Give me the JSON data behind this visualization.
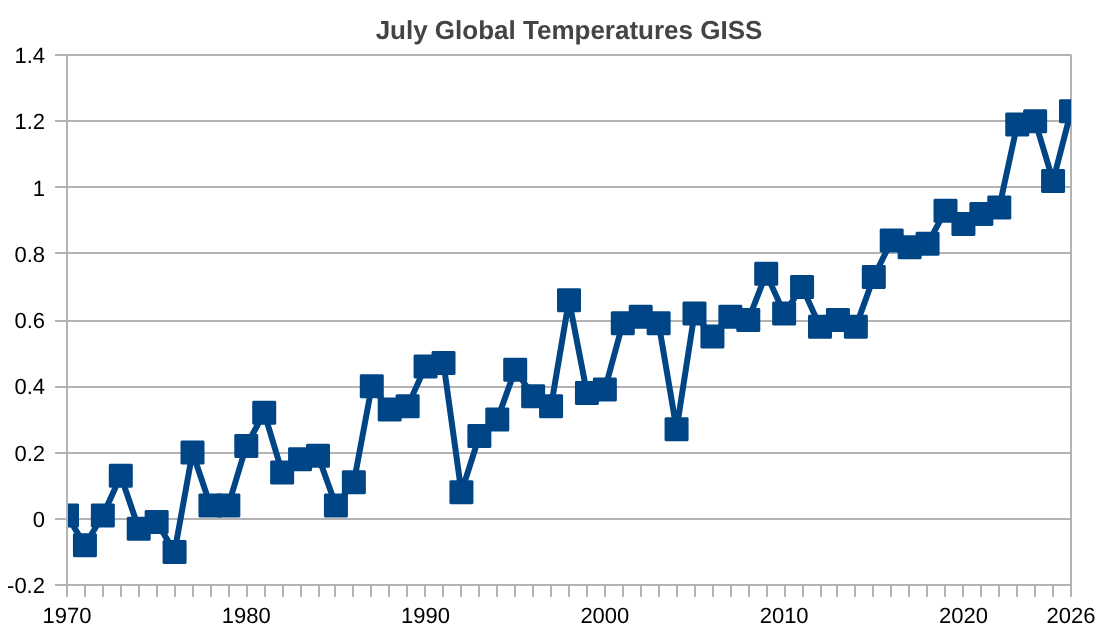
{
  "chart_data": {
    "type": "line",
    "title": "July Global Temperatures GISS",
    "x": [
      1970,
      1971,
      1972,
      1973,
      1974,
      1975,
      1976,
      1977,
      1978,
      1979,
      1980,
      1981,
      1982,
      1983,
      1984,
      1985,
      1986,
      1987,
      1988,
      1989,
      1990,
      1991,
      1992,
      1993,
      1994,
      1995,
      1996,
      1997,
      1998,
      1999,
      2000,
      2001,
      2002,
      2003,
      2004,
      2005,
      2006,
      2007,
      2008,
      2009,
      2010,
      2011,
      2012,
      2013,
      2014,
      2015,
      2016,
      2017,
      2018,
      2019,
      2020,
      2021,
      2022,
      2023,
      2024,
      2025,
      2026
    ],
    "series": [
      {
        "color": "#004586",
        "values": [
          0.01,
          -0.08,
          0.01,
          0.13,
          -0.03,
          -0.01,
          -0.1,
          0.2,
          0.04,
          0.04,
          0.22,
          0.32,
          0.14,
          0.18,
          0.19,
          0.04,
          0.11,
          0.4,
          0.33,
          0.34,
          0.46,
          0.47,
          0.08,
          0.25,
          0.3,
          0.45,
          0.37,
          0.34,
          0.66,
          0.38,
          0.39,
          0.59,
          0.61,
          0.59,
          0.27,
          0.62,
          0.55,
          0.61,
          0.6,
          0.74,
          0.62,
          0.7,
          0.58,
          0.6,
          0.58,
          0.73,
          0.84,
          0.82,
          0.83,
          0.93,
          0.89,
          0.92,
          0.94,
          1.19,
          1.2,
          1.02,
          1.23
        ]
      }
    ],
    "xlim": [
      1970,
      2026
    ],
    "xticks": [
      1970,
      {
        "value": 1971,
        "label": null
      },
      {
        "value": 1972,
        "label": null
      },
      {
        "value": 1973,
        "label": null
      },
      {
        "value": 1974,
        "label": null
      },
      {
        "value": 1975,
        "label": null
      },
      {
        "value": 1976,
        "label": null
      },
      {
        "value": 1977,
        "label": null
      },
      {
        "value": 1978,
        "label": null
      },
      {
        "value": 1979,
        "label": null
      },
      1980,
      {
        "value": 1981,
        "label": null
      },
      {
        "value": 1982,
        "label": null
      },
      {
        "value": 1983,
        "label": null
      },
      {
        "value": 1984,
        "label": null
      },
      {
        "value": 1985,
        "label": null
      },
      {
        "value": 1986,
        "label": null
      },
      {
        "value": 1987,
        "label": null
      },
      {
        "value": 1988,
        "label": null
      },
      {
        "value": 1989,
        "label": null
      },
      1990,
      {
        "value": 1991,
        "label": null
      },
      {
        "value": 1992,
        "label": null
      },
      {
        "value": 1993,
        "label": null
      },
      {
        "value": 1994,
        "label": null
      },
      {
        "value": 1995,
        "label": null
      },
      {
        "value": 1996,
        "label": null
      },
      {
        "value": 1997,
        "label": null
      },
      {
        "value": 1998,
        "label": null
      },
      {
        "value": 1999,
        "label": null
      },
      2000,
      {
        "value": 2001,
        "label": null
      },
      {
        "value": 2002,
        "label": null
      },
      {
        "value": 2003,
        "label": null
      },
      {
        "value": 2004,
        "label": null
      },
      {
        "value": 2005,
        "label": null
      },
      {
        "value": 2006,
        "label": null
      },
      {
        "value": 2007,
        "label": null
      },
      {
        "value": 2008,
        "label": null
      },
      {
        "value": 2009,
        "label": null
      },
      2010,
      {
        "value": 2011,
        "label": null
      },
      {
        "value": 2012,
        "label": null
      },
      {
        "value": 2013,
        "label": null
      },
      {
        "value": 2014,
        "label": null
      },
      {
        "value": 2015,
        "label": null
      },
      {
        "value": 2016,
        "label": null
      },
      {
        "value": 2017,
        "label": null
      },
      {
        "value": 2018,
        "label": null
      },
      {
        "value": 2019,
        "label": null
      },
      2020,
      {
        "value": 2021,
        "label": null
      },
      {
        "value": 2022,
        "label": null
      },
      {
        "value": 2023,
        "label": null
      },
      {
        "value": 2024,
        "label": null
      },
      {
        "value": 2025,
        "label": null
      },
      2026
    ],
    "ylim": [
      -0.2,
      1.4
    ],
    "yticks": [
      -0.2,
      0,
      0.2,
      0.4,
      0.6,
      0.8,
      1,
      1.2,
      1.4
    ],
    "grid": "y",
    "marker": "square",
    "line_style": "solid"
  }
}
